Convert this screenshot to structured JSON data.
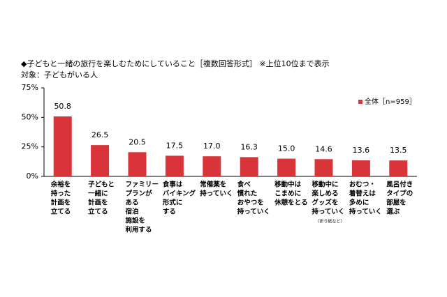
{
  "chart_data": {
    "type": "bar",
    "title": "◆子どもと一緒の旅行を楽しむためにしていること［複数回答形式］ ※上位10位まで表示",
    "subtitle": "対象：子どもがいる人",
    "categories": [
      [
        "余裕を",
        "持った",
        "計画を",
        "立てる"
      ],
      [
        "子どもと",
        "一緒に",
        "計画を",
        "立てる"
      ],
      [
        "ファミリー",
        "プランが",
        "ある",
        "宿泊",
        "施設を",
        "利用する"
      ],
      [
        "食事は",
        "バイキング",
        "形式に",
        "する"
      ],
      [
        "常備薬を",
        "持っていく"
      ],
      [
        "食べ",
        "慣れた",
        "おやつを",
        "持っていく"
      ],
      [
        "移動中は",
        "こまめに",
        "休憩をとる"
      ],
      [
        "移動中に",
        "楽しめる",
        "グッズを",
        "持っていく"
      ],
      [
        "おむつ・",
        "着替えは",
        "多めに",
        "持っていく"
      ],
      [
        "風呂付き",
        "タイプの",
        "部屋を",
        "選ぶ"
      ]
    ],
    "annotation": "（折り紙など）",
    "series": [
      {
        "name": "全体［n=959］",
        "color": "#d8343a",
        "values": [
          50.8,
          26.5,
          20.5,
          17.5,
          17.0,
          16.3,
          15.0,
          14.6,
          13.6,
          13.5
        ],
        "value_labels": [
          "50.8",
          "26.5",
          "20.5",
          "17.5",
          "17.0",
          "16.3",
          "15.0",
          "14.6",
          "13.6",
          "13.5"
        ]
      }
    ],
    "ylim": [
      0,
      75
    ],
    "yticks": [
      {
        "value": 0,
        "label": "0%"
      },
      {
        "value": 25,
        "label": "25%"
      },
      {
        "value": 50,
        "label": "50%"
      },
      {
        "value": 75,
        "label": "75%"
      }
    ],
    "grid": false,
    "legend": "top-right"
  }
}
